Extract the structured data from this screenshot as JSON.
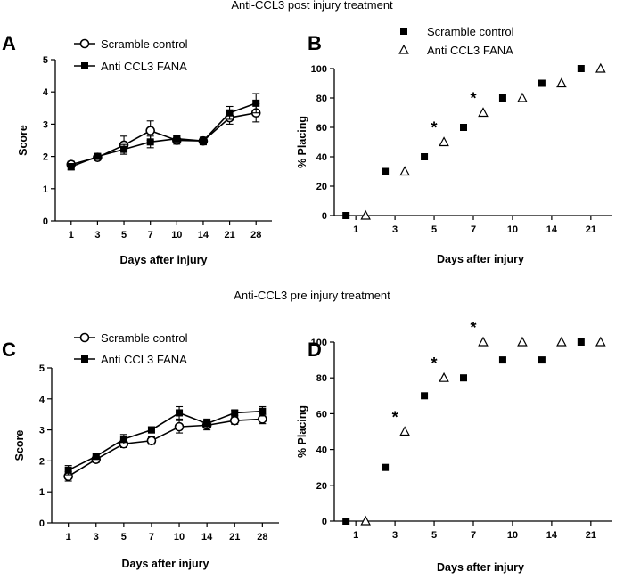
{
  "figure": {
    "top_title": "Anti-CCL3 post injury treatment",
    "bottom_title": "Anti-CCL3 pre injury treatment"
  },
  "chart_data": [
    {
      "panel": "A",
      "type": "line",
      "title": "",
      "categories": [
        "1",
        "3",
        "5",
        "7",
        "10",
        "14",
        "21",
        "28"
      ],
      "xlabel": "Days after injury",
      "ylabel": "Score",
      "ylim": [
        0,
        5
      ],
      "yticks": [
        0,
        1,
        2,
        3,
        4,
        5
      ],
      "legend": "top-left",
      "series": [
        {
          "name": "Scramble control",
          "marker": "open-circle",
          "values": [
            1.75,
            1.97,
            2.35,
            2.8,
            2.5,
            2.48,
            3.2,
            3.35
          ],
          "errors": [
            0.1,
            0.07,
            0.28,
            0.3,
            0.12,
            0.12,
            0.2,
            0.28
          ]
        },
        {
          "name": "Anti CCL3 FANA",
          "marker": "filled-square",
          "values": [
            1.68,
            2.0,
            2.22,
            2.45,
            2.55,
            2.48,
            3.35,
            3.65
          ],
          "errors": [
            0.1,
            0.07,
            0.15,
            0.18,
            0.1,
            0.1,
            0.2,
            0.3
          ]
        }
      ]
    },
    {
      "panel": "B",
      "type": "scatter",
      "title": "",
      "categories": [
        "1",
        "3",
        "5",
        "7",
        "10",
        "14",
        "21"
      ],
      "xlabel": "Days after injury",
      "ylabel": "% Placing",
      "ylim": [
        0,
        100
      ],
      "yticks": [
        0,
        20,
        40,
        60,
        80,
        100
      ],
      "legend": "top",
      "significance": [
        "",
        "",
        "*",
        "*",
        "",
        "",
        ""
      ],
      "series": [
        {
          "name": "Scramble control",
          "marker": "filled-square",
          "values": [
            0,
            30,
            40,
            60,
            80,
            90,
            100
          ]
        },
        {
          "name": "Anti CCL3 FANA",
          "marker": "open-triangle",
          "values": [
            0,
            30,
            50,
            70,
            80,
            90,
            100
          ]
        }
      ]
    },
    {
      "panel": "C",
      "type": "line",
      "title": "",
      "categories": [
        "1",
        "3",
        "5",
        "7",
        "10",
        "14",
        "21",
        "28"
      ],
      "xlabel": "Days after injury",
      "ylabel": "Score",
      "ylim": [
        0,
        5
      ],
      "yticks": [
        0,
        1,
        2,
        3,
        4,
        5
      ],
      "legend": "top-left",
      "series": [
        {
          "name": "Scramble control",
          "marker": "open-circle",
          "values": [
            1.5,
            2.05,
            2.55,
            2.65,
            3.1,
            3.15,
            3.3,
            3.35
          ],
          "errors": [
            0.15,
            0.1,
            0.12,
            0.12,
            0.2,
            0.15,
            0.12,
            0.15
          ]
        },
        {
          "name": "Anti CCL3 FANA",
          "marker": "filled-square",
          "values": [
            1.7,
            2.15,
            2.7,
            3.0,
            3.55,
            3.2,
            3.55,
            3.6
          ],
          "errors": [
            0.15,
            0.1,
            0.15,
            0.1,
            0.2,
            0.15,
            0.08,
            0.15
          ]
        }
      ]
    },
    {
      "panel": "D",
      "type": "scatter",
      "title": "",
      "categories": [
        "1",
        "3",
        "5",
        "7",
        "10",
        "14",
        "21"
      ],
      "xlabel": "Days after injury",
      "ylabel": "% Placing",
      "ylim": [
        0,
        100
      ],
      "yticks": [
        0,
        20,
        40,
        60,
        80,
        100
      ],
      "legend": "none",
      "significance": [
        "",
        "*",
        "*",
        "*",
        "",
        "",
        ""
      ],
      "series": [
        {
          "name": "Scramble control",
          "marker": "filled-square",
          "values": [
            0,
            30,
            70,
            80,
            90,
            90,
            100
          ]
        },
        {
          "name": "Anti CCL3 FANA",
          "marker": "open-triangle",
          "values": [
            0,
            50,
            80,
            100,
            100,
            100,
            100
          ]
        }
      ]
    }
  ]
}
